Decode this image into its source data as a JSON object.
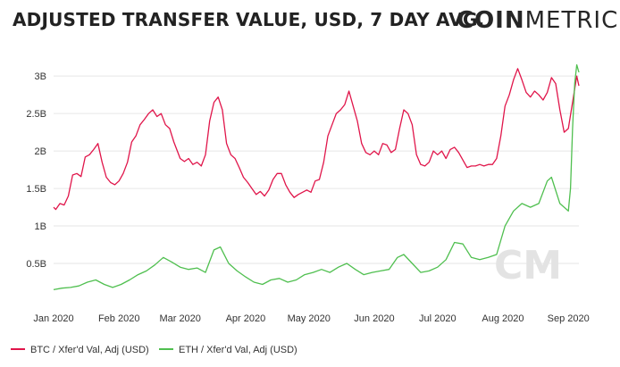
{
  "header": {
    "title": "ADJUSTED TRANSFER VALUE, USD, 7 DAY AVG.",
    "brand_bold": "COIN",
    "brand_light": "METRICS"
  },
  "watermark": "CM",
  "colors": {
    "btc": "#e0154a",
    "eth": "#4fbf4f",
    "grid": "#e6e6e6"
  },
  "chart_data": {
    "type": "line",
    "title": "ADJUSTED TRANSFER VALUE, USD, 7 DAY AVG.",
    "xlabel": "",
    "ylabel": "",
    "ylim": [
      0,
      3.3
    ],
    "xlim": [
      "2020-01-01",
      "2020-09-06"
    ],
    "grid": "horizontal",
    "legend_position": "bottom-left",
    "y_ticks": [
      {
        "value": 0.5,
        "label": "0.5B"
      },
      {
        "value": 1,
        "label": "1B"
      },
      {
        "value": 1.5,
        "label": "1.5B"
      },
      {
        "value": 2,
        "label": "2B"
      },
      {
        "value": 2.5,
        "label": "2.5B"
      },
      {
        "value": 3,
        "label": "3B"
      }
    ],
    "x_ticks": [
      {
        "date": "2020-01-01",
        "label": "Jan 2020"
      },
      {
        "date": "2020-02-01",
        "label": "Feb 2020"
      },
      {
        "date": "2020-03-01",
        "label": "Mar 2020"
      },
      {
        "date": "2020-04-01",
        "label": "Apr 2020"
      },
      {
        "date": "2020-05-01",
        "label": "May 2020"
      },
      {
        "date": "2020-06-01",
        "label": "Jun 2020"
      },
      {
        "date": "2020-07-01",
        "label": "Jul 2020"
      },
      {
        "date": "2020-08-01",
        "label": "Aug 2020"
      },
      {
        "date": "2020-09-01",
        "label": "Sep 2020"
      }
    ],
    "series": [
      {
        "name": "BTC / Xfer'd Val, Adj (USD)",
        "color": "#e0154a",
        "points": [
          [
            "2020-01-01",
            1.25
          ],
          [
            "2020-01-02",
            1.22
          ],
          [
            "2020-01-04",
            1.3
          ],
          [
            "2020-01-06",
            1.28
          ],
          [
            "2020-01-08",
            1.4
          ],
          [
            "2020-01-10",
            1.68
          ],
          [
            "2020-01-12",
            1.7
          ],
          [
            "2020-01-14",
            1.66
          ],
          [
            "2020-01-16",
            1.92
          ],
          [
            "2020-01-18",
            1.95
          ],
          [
            "2020-01-20",
            2.02
          ],
          [
            "2020-01-22",
            2.1
          ],
          [
            "2020-01-24",
            1.85
          ],
          [
            "2020-01-26",
            1.65
          ],
          [
            "2020-01-28",
            1.58
          ],
          [
            "2020-01-30",
            1.55
          ],
          [
            "2020-02-01",
            1.6
          ],
          [
            "2020-02-03",
            1.7
          ],
          [
            "2020-02-05",
            1.85
          ],
          [
            "2020-02-07",
            2.12
          ],
          [
            "2020-02-09",
            2.2
          ],
          [
            "2020-02-11",
            2.35
          ],
          [
            "2020-02-13",
            2.42
          ],
          [
            "2020-02-15",
            2.5
          ],
          [
            "2020-02-17",
            2.55
          ],
          [
            "2020-02-19",
            2.46
          ],
          [
            "2020-02-21",
            2.5
          ],
          [
            "2020-02-23",
            2.35
          ],
          [
            "2020-02-25",
            2.3
          ],
          [
            "2020-02-27",
            2.12
          ],
          [
            "2020-03-01",
            1.9
          ],
          [
            "2020-03-03",
            1.86
          ],
          [
            "2020-03-05",
            1.9
          ],
          [
            "2020-03-07",
            1.82
          ],
          [
            "2020-03-09",
            1.85
          ],
          [
            "2020-03-11",
            1.8
          ],
          [
            "2020-03-13",
            1.95
          ],
          [
            "2020-03-15",
            2.4
          ],
          [
            "2020-03-17",
            2.65
          ],
          [
            "2020-03-19",
            2.72
          ],
          [
            "2020-03-21",
            2.55
          ],
          [
            "2020-03-23",
            2.1
          ],
          [
            "2020-03-25",
            1.95
          ],
          [
            "2020-03-27",
            1.9
          ],
          [
            "2020-03-29",
            1.78
          ],
          [
            "2020-03-31",
            1.65
          ],
          [
            "2020-04-02",
            1.58
          ],
          [
            "2020-04-04",
            1.5
          ],
          [
            "2020-04-06",
            1.42
          ],
          [
            "2020-04-08",
            1.46
          ],
          [
            "2020-04-10",
            1.4
          ],
          [
            "2020-04-12",
            1.48
          ],
          [
            "2020-04-14",
            1.62
          ],
          [
            "2020-04-16",
            1.7
          ],
          [
            "2020-04-18",
            1.7
          ],
          [
            "2020-04-20",
            1.55
          ],
          [
            "2020-04-22",
            1.45
          ],
          [
            "2020-04-24",
            1.38
          ],
          [
            "2020-04-26",
            1.42
          ],
          [
            "2020-04-28",
            1.45
          ],
          [
            "2020-04-30",
            1.48
          ],
          [
            "2020-05-02",
            1.45
          ],
          [
            "2020-05-04",
            1.6
          ],
          [
            "2020-05-06",
            1.62
          ],
          [
            "2020-05-08",
            1.85
          ],
          [
            "2020-05-10",
            2.2
          ],
          [
            "2020-05-12",
            2.35
          ],
          [
            "2020-05-14",
            2.5
          ],
          [
            "2020-05-16",
            2.55
          ],
          [
            "2020-05-18",
            2.62
          ],
          [
            "2020-05-20",
            2.8
          ],
          [
            "2020-05-22",
            2.6
          ],
          [
            "2020-05-24",
            2.4
          ],
          [
            "2020-05-26",
            2.1
          ],
          [
            "2020-05-28",
            1.98
          ],
          [
            "2020-05-30",
            1.95
          ],
          [
            "2020-06-01",
            2.0
          ],
          [
            "2020-06-03",
            1.95
          ],
          [
            "2020-06-05",
            2.1
          ],
          [
            "2020-06-07",
            2.08
          ],
          [
            "2020-06-09",
            1.98
          ],
          [
            "2020-06-11",
            2.02
          ],
          [
            "2020-06-13",
            2.3
          ],
          [
            "2020-06-15",
            2.55
          ],
          [
            "2020-06-17",
            2.5
          ],
          [
            "2020-06-19",
            2.35
          ],
          [
            "2020-06-21",
            1.95
          ],
          [
            "2020-06-23",
            1.82
          ],
          [
            "2020-06-25",
            1.8
          ],
          [
            "2020-06-27",
            1.85
          ],
          [
            "2020-06-29",
            2.0
          ],
          [
            "2020-07-01",
            1.95
          ],
          [
            "2020-07-03",
            2.0
          ],
          [
            "2020-07-05",
            1.9
          ],
          [
            "2020-07-07",
            2.02
          ],
          [
            "2020-07-09",
            2.05
          ],
          [
            "2020-07-11",
            1.98
          ],
          [
            "2020-07-13",
            1.88
          ],
          [
            "2020-07-15",
            1.78
          ],
          [
            "2020-07-17",
            1.8
          ],
          [
            "2020-07-19",
            1.8
          ],
          [
            "2020-07-21",
            1.82
          ],
          [
            "2020-07-23",
            1.8
          ],
          [
            "2020-07-25",
            1.82
          ],
          [
            "2020-07-27",
            1.82
          ],
          [
            "2020-07-29",
            1.9
          ],
          [
            "2020-07-31",
            2.2
          ],
          [
            "2020-08-02",
            2.6
          ],
          [
            "2020-08-04",
            2.75
          ],
          [
            "2020-08-06",
            2.95
          ],
          [
            "2020-08-08",
            3.1
          ],
          [
            "2020-08-10",
            2.95
          ],
          [
            "2020-08-12",
            2.78
          ],
          [
            "2020-08-14",
            2.72
          ],
          [
            "2020-08-16",
            2.8
          ],
          [
            "2020-08-18",
            2.75
          ],
          [
            "2020-08-20",
            2.68
          ],
          [
            "2020-08-22",
            2.78
          ],
          [
            "2020-08-24",
            2.98
          ],
          [
            "2020-08-26",
            2.9
          ],
          [
            "2020-08-28",
            2.55
          ],
          [
            "2020-08-30",
            2.25
          ],
          [
            "2020-09-01",
            2.3
          ],
          [
            "2020-09-03",
            2.65
          ],
          [
            "2020-09-05",
            3.0
          ],
          [
            "2020-09-06",
            2.87
          ]
        ]
      },
      {
        "name": "ETH / Xfer'd Val, Adj (USD)",
        "color": "#4fbf4f",
        "points": [
          [
            "2020-01-01",
            0.15
          ],
          [
            "2020-01-05",
            0.17
          ],
          [
            "2020-01-09",
            0.18
          ],
          [
            "2020-01-13",
            0.2
          ],
          [
            "2020-01-17",
            0.25
          ],
          [
            "2020-01-21",
            0.28
          ],
          [
            "2020-01-25",
            0.22
          ],
          [
            "2020-01-29",
            0.18
          ],
          [
            "2020-02-02",
            0.22
          ],
          [
            "2020-02-06",
            0.28
          ],
          [
            "2020-02-10",
            0.35
          ],
          [
            "2020-02-14",
            0.4
          ],
          [
            "2020-02-18",
            0.48
          ],
          [
            "2020-02-22",
            0.58
          ],
          [
            "2020-02-26",
            0.52
          ],
          [
            "2020-03-01",
            0.45
          ],
          [
            "2020-03-05",
            0.42
          ],
          [
            "2020-03-09",
            0.44
          ],
          [
            "2020-03-13",
            0.38
          ],
          [
            "2020-03-17",
            0.68
          ],
          [
            "2020-03-20",
            0.72
          ],
          [
            "2020-03-24",
            0.5
          ],
          [
            "2020-03-28",
            0.4
          ],
          [
            "2020-04-01",
            0.32
          ],
          [
            "2020-04-05",
            0.25
          ],
          [
            "2020-04-09",
            0.22
          ],
          [
            "2020-04-13",
            0.28
          ],
          [
            "2020-04-17",
            0.3
          ],
          [
            "2020-04-21",
            0.25
          ],
          [
            "2020-04-25",
            0.28
          ],
          [
            "2020-04-29",
            0.35
          ],
          [
            "2020-05-03",
            0.38
          ],
          [
            "2020-05-07",
            0.42
          ],
          [
            "2020-05-11",
            0.38
          ],
          [
            "2020-05-15",
            0.45
          ],
          [
            "2020-05-19",
            0.5
          ],
          [
            "2020-05-23",
            0.42
          ],
          [
            "2020-05-27",
            0.35
          ],
          [
            "2020-05-31",
            0.38
          ],
          [
            "2020-06-04",
            0.4
          ],
          [
            "2020-06-08",
            0.42
          ],
          [
            "2020-06-12",
            0.58
          ],
          [
            "2020-06-15",
            0.62
          ],
          [
            "2020-06-19",
            0.5
          ],
          [
            "2020-06-23",
            0.38
          ],
          [
            "2020-06-27",
            0.4
          ],
          [
            "2020-07-01",
            0.45
          ],
          [
            "2020-07-05",
            0.55
          ],
          [
            "2020-07-09",
            0.78
          ],
          [
            "2020-07-13",
            0.76
          ],
          [
            "2020-07-17",
            0.58
          ],
          [
            "2020-07-21",
            0.55
          ],
          [
            "2020-07-25",
            0.58
          ],
          [
            "2020-07-29",
            0.62
          ],
          [
            "2020-08-02",
            1.0
          ],
          [
            "2020-08-06",
            1.2
          ],
          [
            "2020-08-10",
            1.3
          ],
          [
            "2020-08-14",
            1.25
          ],
          [
            "2020-08-18",
            1.3
          ],
          [
            "2020-08-22",
            1.6
          ],
          [
            "2020-08-24",
            1.65
          ],
          [
            "2020-08-28",
            1.3
          ],
          [
            "2020-09-01",
            1.2
          ],
          [
            "2020-09-02",
            1.5
          ],
          [
            "2020-09-03",
            2.3
          ],
          [
            "2020-09-04",
            2.9
          ],
          [
            "2020-09-05",
            3.15
          ],
          [
            "2020-09-06",
            3.05
          ]
        ]
      }
    ]
  }
}
